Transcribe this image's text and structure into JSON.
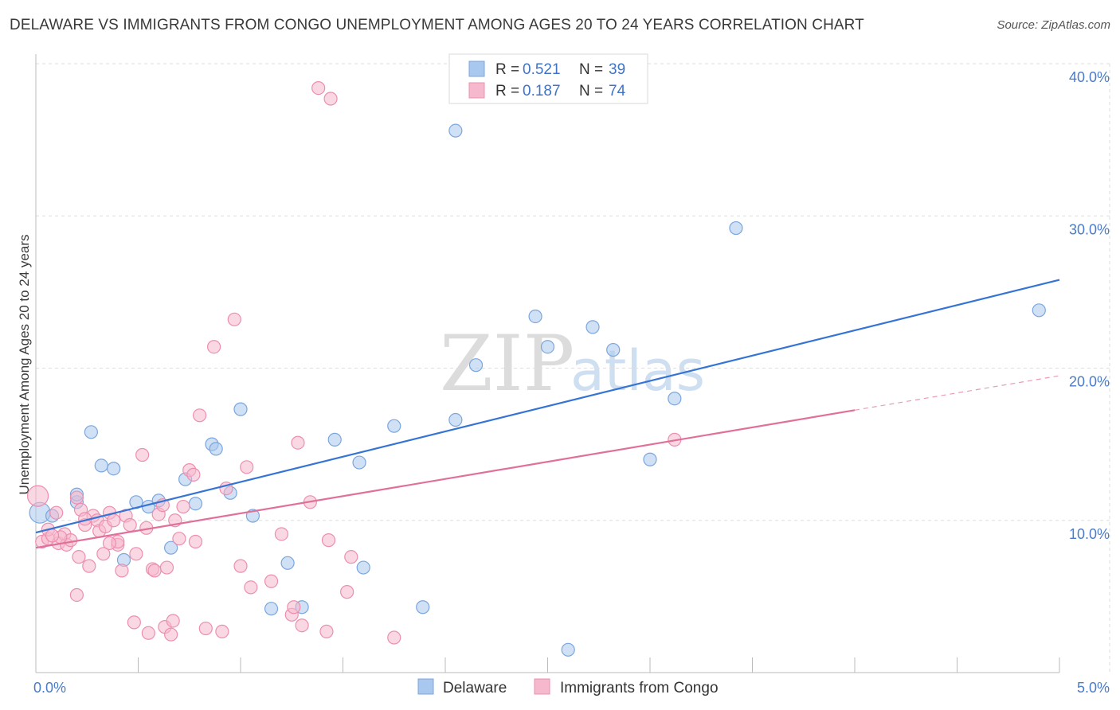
{
  "title": "DELAWARE VS IMMIGRANTS FROM CONGO UNEMPLOYMENT AMONG AGES 20 TO 24 YEARS CORRELATION CHART",
  "source": "Source: ZipAtlas.com",
  "watermark": {
    "zip": "ZIP",
    "atlas": "atlas"
  },
  "colors": {
    "delaware_fill": "#a9c8ef",
    "delaware_stroke": "#7aa6de",
    "delaware_line": "#3574d4",
    "congo_fill": "#f5b8cc",
    "congo_stroke": "#ec8fae",
    "congo_line": "#e0709a",
    "tick_label": "#4a7cc9"
  },
  "legend": {
    "rows": [
      {
        "r_label": "R =",
        "r_value": "0.521",
        "n_label": "N =",
        "n_value": "39"
      },
      {
        "r_label": "R =",
        "r_value": "0.187",
        "n_label": "N =",
        "n_value": "74"
      }
    ]
  },
  "chart_data": {
    "type": "scatter",
    "title": "DELAWARE VS IMMIGRANTS FROM CONGO UNEMPLOYMENT AMONG AGES 20 TO 24 YEARS CORRELATION CHART",
    "xlabel": "",
    "ylabel": "Unemployment Among Ages 20 to 24 years",
    "xlim": [
      0,
      5
    ],
    "ylim": [
      0,
      40
    ],
    "x_tick_labels": [
      "0.0%",
      "5.0%"
    ],
    "y_ticks": [
      10,
      20,
      30,
      40
    ],
    "y_tick_labels": [
      "10.0%",
      "20.0%",
      "30.0%",
      "40.0%"
    ],
    "grid": true,
    "legend_position": "top-center",
    "series": [
      {
        "name": "Delaware",
        "R": 0.521,
        "N": 39,
        "trend": {
          "x0": 0,
          "y0": 9.2,
          "x1": 5.0,
          "y1": 25.8,
          "dashed_from": null
        },
        "points": [
          [
            0.02,
            10.5
          ],
          [
            0.08,
            10.3
          ],
          [
            0.2,
            11.2
          ],
          [
            0.2,
            11.7
          ],
          [
            0.27,
            15.8
          ],
          [
            0.32,
            13.6
          ],
          [
            0.38,
            13.4
          ],
          [
            0.43,
            7.4
          ],
          [
            0.49,
            11.2
          ],
          [
            0.55,
            10.9
          ],
          [
            0.6,
            11.3
          ],
          [
            0.66,
            8.2
          ],
          [
            0.73,
            12.7
          ],
          [
            0.78,
            11.1
          ],
          [
            0.86,
            15.0
          ],
          [
            0.88,
            14.7
          ],
          [
            0.95,
            11.8
          ],
          [
            1.0,
            17.3
          ],
          [
            1.06,
            10.3
          ],
          [
            1.15,
            4.2
          ],
          [
            1.23,
            7.2
          ],
          [
            1.3,
            4.3
          ],
          [
            1.46,
            15.3
          ],
          [
            1.58,
            13.8
          ],
          [
            1.6,
            6.9
          ],
          [
            1.75,
            16.2
          ],
          [
            1.89,
            4.3
          ],
          [
            2.05,
            16.6
          ],
          [
            2.15,
            20.2
          ],
          [
            2.05,
            35.6
          ],
          [
            2.44,
            23.4
          ],
          [
            2.5,
            21.4
          ],
          [
            2.6,
            1.5
          ],
          [
            2.72,
            22.7
          ],
          [
            2.82,
            21.2
          ],
          [
            3.0,
            14.0
          ],
          [
            3.12,
            18.0
          ],
          [
            3.42,
            29.2
          ],
          [
            4.9,
            23.8
          ]
        ]
      },
      {
        "name": "Immigrants from Congo",
        "R": 0.187,
        "N": 74,
        "trend": {
          "x0": 0,
          "y0": 8.2,
          "x1": 5.0,
          "y1": 19.5,
          "dashed_from": 4.0
        },
        "points": [
          [
            0.01,
            11.6
          ],
          [
            0.03,
            8.6
          ],
          [
            0.06,
            8.8
          ],
          [
            0.06,
            9.4
          ],
          [
            0.1,
            10.5
          ],
          [
            0.11,
            8.5
          ],
          [
            0.14,
            9.1
          ],
          [
            0.15,
            8.4
          ],
          [
            0.17,
            8.7
          ],
          [
            0.2,
            11.5
          ],
          [
            0.2,
            5.1
          ],
          [
            0.21,
            7.6
          ],
          [
            0.22,
            10.7
          ],
          [
            0.24,
            9.7
          ],
          [
            0.26,
            7.0
          ],
          [
            0.28,
            10.3
          ],
          [
            0.3,
            10.0
          ],
          [
            0.31,
            9.3
          ],
          [
            0.33,
            7.8
          ],
          [
            0.34,
            9.6
          ],
          [
            0.36,
            10.5
          ],
          [
            0.38,
            10.0
          ],
          [
            0.4,
            8.4
          ],
          [
            0.4,
            8.6
          ],
          [
            0.42,
            6.7
          ],
          [
            0.44,
            10.3
          ],
          [
            0.46,
            9.7
          ],
          [
            0.48,
            3.3
          ],
          [
            0.49,
            7.8
          ],
          [
            0.52,
            14.3
          ],
          [
            0.54,
            9.5
          ],
          [
            0.55,
            2.6
          ],
          [
            0.57,
            6.8
          ],
          [
            0.58,
            6.7
          ],
          [
            0.6,
            10.4
          ],
          [
            0.62,
            11.0
          ],
          [
            0.63,
            3.0
          ],
          [
            0.64,
            6.9
          ],
          [
            0.66,
            2.5
          ],
          [
            0.67,
            3.4
          ],
          [
            0.7,
            8.8
          ],
          [
            0.72,
            10.9
          ],
          [
            0.75,
            13.3
          ],
          [
            0.77,
            13.0
          ],
          [
            0.78,
            8.6
          ],
          [
            0.8,
            16.9
          ],
          [
            0.83,
            2.9
          ],
          [
            0.87,
            21.4
          ],
          [
            0.91,
            2.7
          ],
          [
            0.93,
            12.1
          ],
          [
            0.97,
            23.2
          ],
          [
            1.0,
            7.0
          ],
          [
            1.03,
            13.5
          ],
          [
            1.05,
            5.6
          ],
          [
            1.2,
            9.1
          ],
          [
            1.25,
            3.8
          ],
          [
            1.26,
            4.3
          ],
          [
            1.28,
            15.1
          ],
          [
            1.3,
            3.1
          ],
          [
            1.34,
            11.2
          ],
          [
            1.38,
            38.4
          ],
          [
            1.42,
            2.7
          ],
          [
            1.43,
            8.7
          ],
          [
            1.44,
            37.7
          ],
          [
            1.52,
            5.3
          ],
          [
            1.54,
            7.6
          ],
          [
            1.75,
            2.3
          ],
          [
            3.12,
            15.3
          ],
          [
            0.12,
            8.9
          ],
          [
            0.36,
            8.5
          ],
          [
            0.68,
            10.0
          ],
          [
            0.08,
            9.0
          ],
          [
            1.15,
            6.0
          ],
          [
            0.24,
            10.1
          ]
        ]
      }
    ]
  },
  "bottom_legend": [
    {
      "label": "Delaware"
    },
    {
      "label": "Immigrants from Congo"
    }
  ]
}
